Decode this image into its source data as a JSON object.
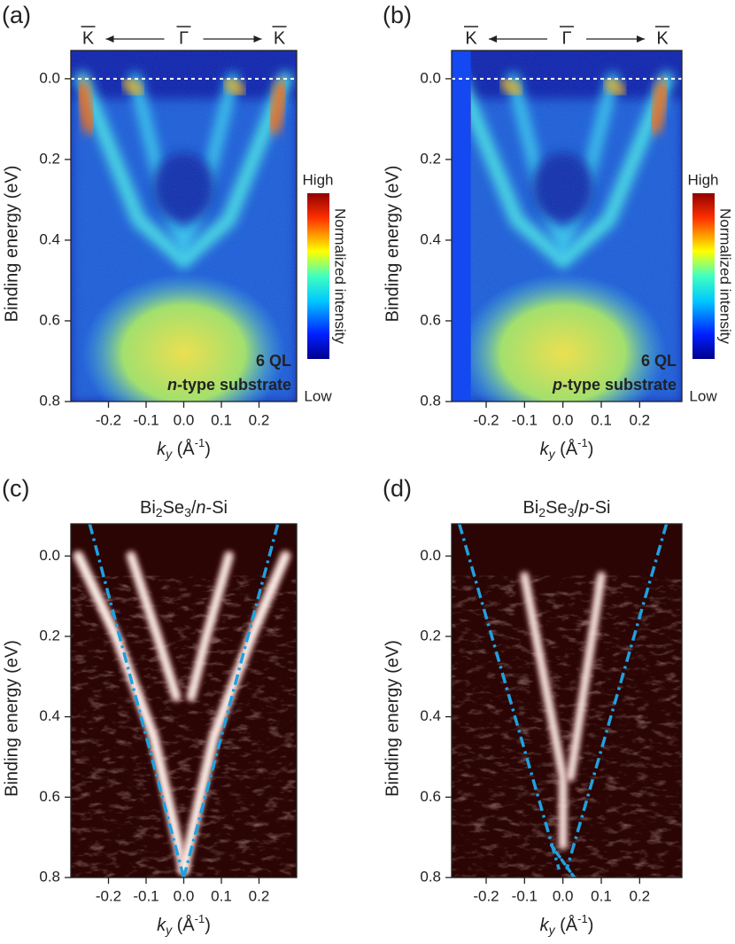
{
  "panels": [
    {
      "label": "(a)",
      "header": [
        "K",
        "Γ",
        "K"
      ],
      "colormap": "jet",
      "xlabel": [
        "k",
        "y",
        " (Å",
        "-1",
        ")"
      ],
      "ylabel": "Binding energy (eV)",
      "xlim": [
        -0.3,
        0.3
      ],
      "ylim": [
        -0.07,
        0.8
      ],
      "xticks": [
        -0.2,
        -0.1,
        {
          "value": 0,
          "label": "0.0"
        },
        0.1,
        0.2
      ],
      "yticks": [
        {
          "value": 0,
          "label": "0.0"
        },
        0.2,
        0.4,
        0.6,
        0.8
      ],
      "colorbar": {
        "high": "High",
        "title": "Normalized intensity",
        "low": "Low"
      },
      "annotation": {
        "thickness": "6 QL",
        "carrier": "n",
        "substrate": "-type substrate"
      }
    },
    {
      "label": "(b)",
      "header": [
        "K",
        "Γ",
        "K"
      ],
      "colormap": "jet",
      "xlabel": [
        "k",
        "y",
        " (Å",
        "-1",
        ")"
      ],
      "ylabel": "Binding energy (eV)",
      "xlim": [
        -0.29,
        0.31
      ],
      "ylim": [
        -0.07,
        0.8
      ],
      "xticks": [
        -0.2,
        -0.1,
        {
          "value": 0,
          "label": "0.0"
        },
        0.1,
        0.2
      ],
      "yticks": [
        {
          "value": 0,
          "label": "0.0"
        },
        0.2,
        0.4,
        0.6,
        0.8
      ],
      "colorbar": {
        "high": "High",
        "title": "Normalized intensity",
        "low": "Low"
      },
      "annotation": {
        "thickness": "6 QL",
        "carrier": "p",
        "substrate": "-type substrate"
      }
    },
    {
      "label": "(c)",
      "title": [
        "Bi",
        "2",
        "Se",
        "3",
        "/",
        "n",
        "-Si"
      ],
      "colormap": "hot",
      "xlabel": [
        "k",
        "y",
        " (Å",
        "-1",
        ")"
      ],
      "ylabel": "Binding energy (eV)",
      "xlim": [
        -0.3,
        0.3
      ],
      "ylim": [
        -0.08,
        0.8
      ],
      "xticks": [
        -0.2,
        -0.1,
        {
          "value": 0,
          "label": "0.0"
        },
        0.1,
        0.2
      ],
      "yticks": [
        {
          "value": 0,
          "label": "0.0"
        },
        0.2,
        0.4,
        0.6,
        0.8
      ]
    },
    {
      "label": "(d)",
      "title": [
        "Bi",
        "2",
        "Se",
        "3",
        "/",
        "p",
        "-Si"
      ],
      "colormap": "hot",
      "xlabel": [
        "k",
        "y",
        " (Å",
        "-1",
        ")"
      ],
      "ylabel": "Binding energy (eV)",
      "xlim": [
        -0.29,
        0.31
      ],
      "ylim": [
        -0.08,
        0.8
      ],
      "xticks": [
        -0.2,
        -0.1,
        {
          "value": 0,
          "label": "0.0"
        },
        0.1,
        0.2
      ],
      "yticks": [
        {
          "value": 0,
          "label": "0.0"
        },
        0.2,
        0.4,
        0.6,
        0.8
      ]
    }
  ]
}
